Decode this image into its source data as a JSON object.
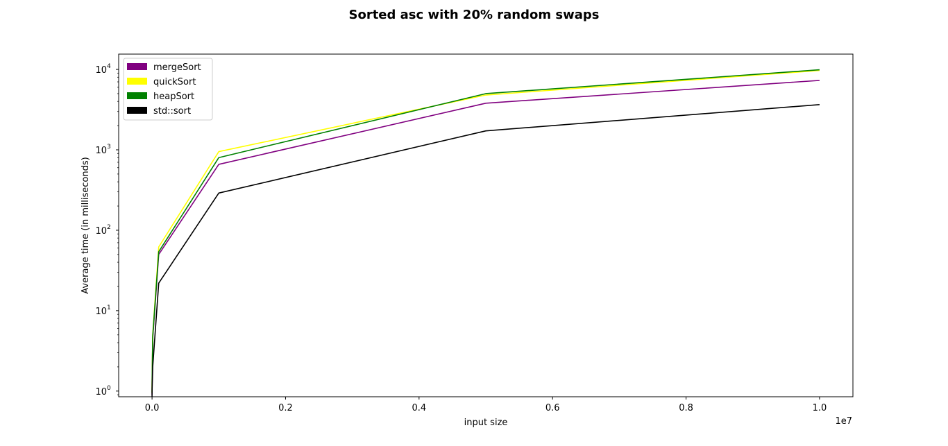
{
  "chart_data": {
    "type": "line",
    "title": "Sorted asc with 20% random swaps",
    "xlabel": "input size",
    "ylabel": "Average time (in milliseconds)",
    "x_offset_label": "1e7",
    "y_scale": "log",
    "ylim": [
      0.85,
      15500
    ],
    "xlim": [
      -500000,
      10500000
    ],
    "x_ticks": [
      {
        "value": 0,
        "label": "0.0"
      },
      {
        "value": 2000000,
        "label": "0.2"
      },
      {
        "value": 4000000,
        "label": "0.4"
      },
      {
        "value": 6000000,
        "label": "0.6"
      },
      {
        "value": 8000000,
        "label": "0.8"
      },
      {
        "value": 10000000,
        "label": "1.0"
      }
    ],
    "y_ticks": [
      {
        "value": 1,
        "base": "10",
        "exp": "0"
      },
      {
        "value": 10,
        "base": "10",
        "exp": "1"
      },
      {
        "value": 100,
        "base": "10",
        "exp": "2"
      },
      {
        "value": 1000,
        "base": "10",
        "exp": "3"
      },
      {
        "value": 10000,
        "base": "10",
        "exp": "4"
      }
    ],
    "legend_position": "top-left",
    "grid": false,
    "x": [
      10,
      100,
      1000,
      10000,
      100000,
      1000000,
      5000000,
      10000000
    ],
    "series": [
      {
        "name": "mergeSort",
        "color": "#800080",
        "values": [
          0.9,
          1.0,
          1.2,
          4.5,
          50,
          660,
          3800,
          7300
        ]
      },
      {
        "name": "quickSort",
        "color": "#ffff00",
        "values": [
          0.95,
          1.1,
          1.4,
          5.0,
          62,
          950,
          4800,
          9700
        ]
      },
      {
        "name": "heapSort",
        "color": "#008000",
        "values": [
          0.95,
          1.05,
          1.3,
          4.8,
          54,
          800,
          5000,
          9900
        ]
      },
      {
        "name": "std::sort",
        "color": "#000000",
        "values": [
          0.85,
          0.9,
          1.05,
          2.0,
          22,
          290,
          1720,
          3650
        ]
      }
    ]
  }
}
